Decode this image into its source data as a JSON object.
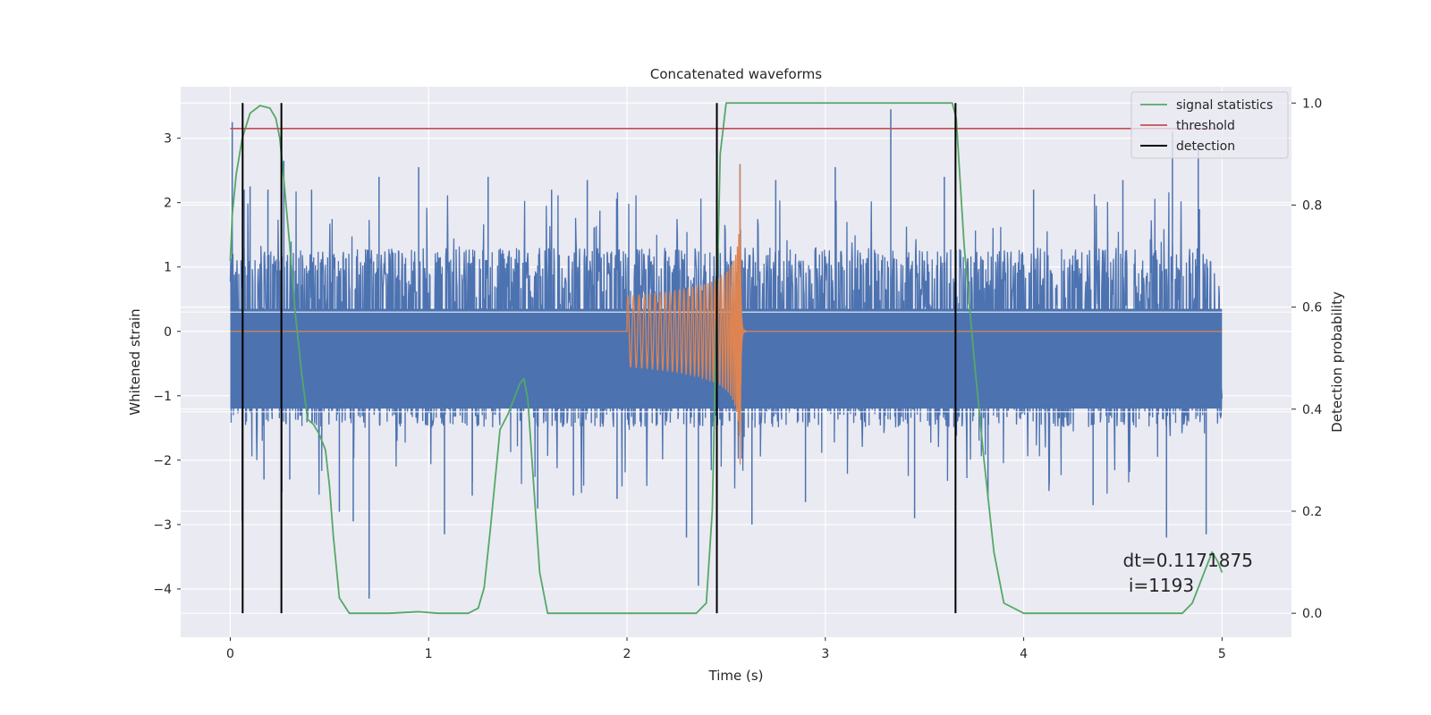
{
  "chart_data": {
    "type": "line",
    "title": "Concatenated waveforms",
    "xlabel": "Time (s)",
    "ylabel": "Whitened strain",
    "y2label": "Detection probability",
    "xlim": [
      -0.25,
      5.35
    ],
    "ylim": [
      -4.75,
      3.8
    ],
    "y2lim": [
      -0.047,
      1.032
    ],
    "xticks": [
      0,
      1,
      2,
      3,
      4,
      5
    ],
    "xtick_labels": [
      "0",
      "1",
      "2",
      "3",
      "4",
      "5"
    ],
    "yticks": [
      3,
      2,
      1,
      0,
      -1,
      -2,
      -3,
      -4
    ],
    "ytick_labels": [
      "3",
      "2",
      "1",
      "0",
      "−1",
      "−2",
      "−3",
      "−4"
    ],
    "y2ticks": [
      1.0,
      0.8,
      0.6,
      0.4,
      0.2,
      0.0
    ],
    "y2tick_labels": [
      "1.0",
      "0.8",
      "0.6",
      "0.4",
      "0.2",
      "0.0"
    ],
    "grid": true,
    "legend_position": "upper-right",
    "colors": {
      "background": "#eaeaf2",
      "grid": "#ffffff",
      "strain": "#4c72b0",
      "injection": "#dd8452",
      "statistics": "#55a868",
      "threshold": "#c44e52",
      "detection": "#000000"
    },
    "noise_strain": {
      "x_start": 0,
      "x_end": 5,
      "envelope_upper": 1.0,
      "envelope_lower": -1.2,
      "spikes": [
        {
          "x": 0.01,
          "y": 3.25
        },
        {
          "x": 0.06,
          "y": -2.95
        },
        {
          "x": 0.07,
          "y": 2.2
        },
        {
          "x": 0.1,
          "y": 2.25
        },
        {
          "x": 0.17,
          "y": -2.3
        },
        {
          "x": 0.19,
          "y": 2.2
        },
        {
          "x": 0.26,
          "y": -2.5
        },
        {
          "x": 0.27,
          "y": 2.65
        },
        {
          "x": 0.3,
          "y": -2.3
        },
        {
          "x": 0.41,
          "y": 2.2
        },
        {
          "x": 0.55,
          "y": -2.8
        },
        {
          "x": 0.62,
          "y": -2.95
        },
        {
          "x": 0.7,
          "y": -4.15
        },
        {
          "x": 0.75,
          "y": 2.4
        },
        {
          "x": 0.95,
          "y": 2.55
        },
        {
          "x": 1.08,
          "y": -3.15
        },
        {
          "x": 1.22,
          "y": -2.55
        },
        {
          "x": 1.3,
          "y": 2.4
        },
        {
          "x": 1.55,
          "y": -2.75
        },
        {
          "x": 1.62,
          "y": 2.2
        },
        {
          "x": 1.73,
          "y": -2.55
        },
        {
          "x": 1.8,
          "y": 2.35
        },
        {
          "x": 1.95,
          "y": -2.6
        },
        {
          "x": 2.3,
          "y": -3.2
        },
        {
          "x": 2.36,
          "y": -3.95
        },
        {
          "x": 2.57,
          "y": 2.6
        },
        {
          "x": 2.63,
          "y": -3.0
        },
        {
          "x": 2.75,
          "y": 2.35
        },
        {
          "x": 2.9,
          "y": -2.65
        },
        {
          "x": 3.05,
          "y": 2.55
        },
        {
          "x": 3.33,
          "y": 3.45
        },
        {
          "x": 3.45,
          "y": -2.9
        },
        {
          "x": 3.6,
          "y": 2.4
        },
        {
          "x": 3.82,
          "y": -2.6
        },
        {
          "x": 4.05,
          "y": 2.2
        },
        {
          "x": 4.35,
          "y": -2.7
        },
        {
          "x": 4.5,
          "y": 2.35
        },
        {
          "x": 4.72,
          "y": -3.2
        },
        {
          "x": 4.75,
          "y": 3.1
        },
        {
          "x": 4.88,
          "y": 2.85
        },
        {
          "x": 4.92,
          "y": -3.15
        }
      ]
    },
    "injection_strain": {
      "x_start": 2.0,
      "merger_x": 2.57,
      "amplitude_start": 0.55,
      "amplitude_peak": 2.6,
      "ringdown_end": 2.6
    },
    "series": [
      {
        "name": "signal statistics",
        "axis": "right",
        "x": [
          0.0,
          0.01,
          0.03,
          0.06,
          0.1,
          0.15,
          0.2,
          0.23,
          0.25,
          0.27,
          0.3,
          0.33,
          0.36,
          0.39,
          0.42,
          0.45,
          0.48,
          0.5,
          0.52,
          0.55,
          0.6,
          0.8,
          0.95,
          1.05,
          1.2,
          1.25,
          1.28,
          1.31,
          1.36,
          1.4,
          1.43,
          1.46,
          1.48,
          1.5,
          1.53,
          1.56,
          1.6,
          2.0,
          2.35,
          2.4,
          2.43,
          2.45,
          2.47,
          2.5,
          2.6,
          3.0,
          3.5,
          3.64,
          3.66,
          3.7,
          3.75,
          3.8,
          3.85,
          3.9,
          4.0,
          4.5,
          4.8,
          4.85,
          4.9,
          4.95,
          4.98,
          5.0
        ],
        "y": [
          0.69,
          0.78,
          0.86,
          0.93,
          0.98,
          0.995,
          0.99,
          0.97,
          0.93,
          0.85,
          0.72,
          0.58,
          0.47,
          0.38,
          0.37,
          0.35,
          0.32,
          0.25,
          0.15,
          0.03,
          0.0,
          0.0,
          0.003,
          0.0,
          0.0,
          0.01,
          0.05,
          0.16,
          0.36,
          0.39,
          0.42,
          0.45,
          0.46,
          0.42,
          0.25,
          0.08,
          0.0,
          0.0,
          0.0,
          0.02,
          0.2,
          0.55,
          0.9,
          1.0,
          1.0,
          1.0,
          1.0,
          1.0,
          0.97,
          0.72,
          0.5,
          0.3,
          0.12,
          0.02,
          0.0,
          0.0,
          0.0,
          0.02,
          0.07,
          0.12,
          0.1,
          0.08
        ]
      },
      {
        "name": "threshold",
        "axis": "right",
        "x": [
          0.0,
          5.0
        ],
        "y": [
          0.95,
          0.95
        ]
      },
      {
        "name": "detection",
        "axis": "right",
        "x": [
          0.0625,
          0.2578,
          2.4531,
          3.6563
        ],
        "type": "vlines",
        "ymin": 0.0,
        "ymax": 1.0
      }
    ],
    "legend": [
      "signal statistics",
      "threshold",
      "detection"
    ],
    "annotation": {
      "line1": "dt=0.1171875",
      "line2": " i=1193",
      "x": 4.5,
      "y": -3.5
    }
  }
}
